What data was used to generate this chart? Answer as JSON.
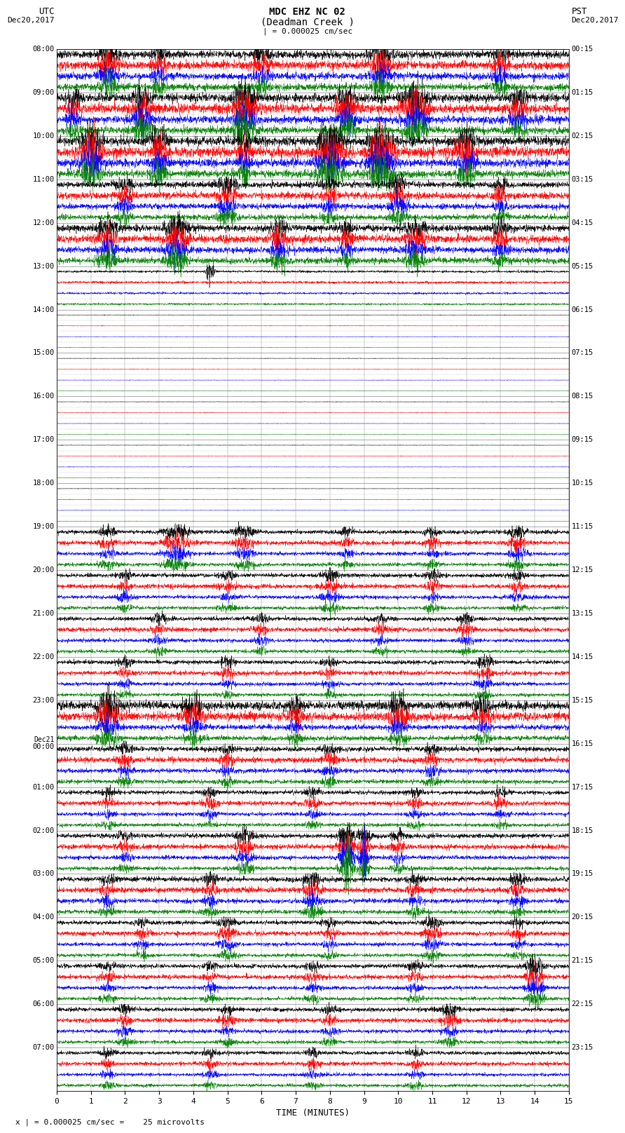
{
  "title_line1": "MDC EHZ NC 02",
  "title_line2": "(Deadman Creek )",
  "title_line3": "| = 0.000025 cm/sec",
  "label_left_top": "UTC",
  "label_left_date": "Dec20,2017",
  "label_right_top": "PST",
  "label_right_date": "Dec20,2017",
  "xlabel": "TIME (MINUTES)",
  "footer": "x | = 0.000025 cm/sec =    25 microvolts",
  "bg_color": "#ffffff",
  "trace_colors": [
    "#000000",
    "#ff0000",
    "#0000ff",
    "#008000"
  ],
  "xlim": [
    0,
    15
  ],
  "xticks": [
    0,
    1,
    2,
    3,
    4,
    5,
    6,
    7,
    8,
    9,
    10,
    11,
    12,
    13,
    14,
    15
  ],
  "n_hour_rows": 24,
  "traces_per_row": 4,
  "utc_labels": [
    "08:00",
    "09:00",
    "10:00",
    "11:00",
    "12:00",
    "13:00",
    "14:00",
    "15:00",
    "16:00",
    "17:00",
    "18:00",
    "19:00",
    "20:00",
    "21:00",
    "22:00",
    "23:00",
    "Dec21\n00:00",
    "01:00",
    "02:00",
    "03:00",
    "04:00",
    "05:00",
    "06:00",
    "07:00"
  ],
  "pst_labels": [
    "00:15",
    "01:15",
    "02:15",
    "03:15",
    "04:15",
    "05:15",
    "06:15",
    "07:15",
    "08:15",
    "09:15",
    "10:15",
    "11:15",
    "12:15",
    "13:15",
    "14:15",
    "15:15",
    "16:15",
    "17:15",
    "18:15",
    "19:15",
    "20:15",
    "21:15",
    "22:15",
    "23:15"
  ],
  "noise_levels": [
    0.35,
    0.38,
    0.4,
    0.28,
    0.32,
    0.1,
    0.02,
    0.02,
    0.02,
    0.02,
    0.02,
    0.18,
    0.18,
    0.18,
    0.18,
    0.25,
    0.22,
    0.18,
    0.2,
    0.22,
    0.18,
    0.18,
    0.18,
    0.16
  ],
  "color_noise_scale": [
    1.0,
    1.1,
    0.9,
    0.85
  ]
}
